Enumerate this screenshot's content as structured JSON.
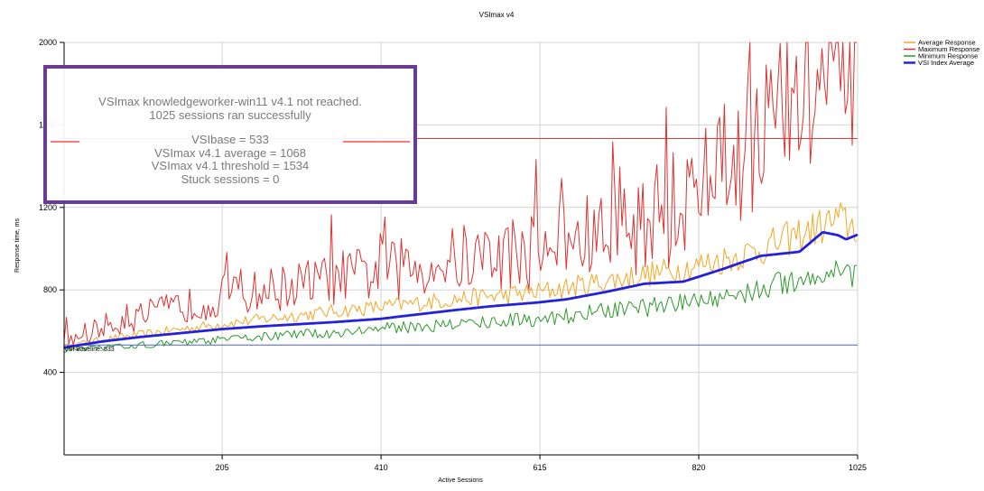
{
  "chart_data": {
    "type": "line",
    "title": "VSImax v4",
    "xlabel": "Active Sessions",
    "ylabel": "Response time, ms",
    "xlim": [
      1,
      1025
    ],
    "ylim": [
      0,
      2000
    ],
    "x_ticks": [
      205,
      410,
      615,
      820,
      1025
    ],
    "y_ticks": [
      400,
      800,
      1200,
      1600,
      2000
    ],
    "grid": true,
    "legend_position": "top-right",
    "baseline": {
      "label": "VSI Baseline: 533",
      "value": 533,
      "color": "#4a5fe0"
    },
    "threshold": {
      "value": 1534,
      "color": "#e03c3c"
    },
    "series": [
      {
        "name": "Average Response",
        "color": "#f5a623",
        "x": [
          1,
          50,
          100,
          150,
          205,
          250,
          300,
          350,
          410,
          450,
          500,
          550,
          615,
          650,
          700,
          750,
          800,
          850,
          900,
          950,
          1000,
          1025
        ],
        "values": [
          520,
          555,
          580,
          605,
          630,
          650,
          670,
          690,
          710,
          725,
          745,
          760,
          780,
          800,
          830,
          860,
          890,
          930,
          980,
          1050,
          1120,
          1080
        ]
      },
      {
        "name": "Maximum Response",
        "color": "#e03030",
        "x": [
          1,
          50,
          100,
          150,
          205,
          250,
          300,
          350,
          410,
          450,
          500,
          550,
          615,
          650,
          700,
          750,
          800,
          850,
          900,
          950,
          1000,
          1025
        ],
        "values": [
          540,
          610,
          660,
          700,
          740,
          770,
          800,
          830,
          860,
          880,
          910,
          930,
          960,
          990,
          1020,
          1080,
          1150,
          1300,
          1500,
          1650,
          1700,
          1550
        ]
      },
      {
        "name": "Minimum Response",
        "color": "#2a9a2a",
        "x": [
          1,
          50,
          100,
          150,
          205,
          250,
          300,
          350,
          410,
          450,
          500,
          550,
          615,
          650,
          700,
          750,
          800,
          850,
          900,
          950,
          1000,
          1025
        ],
        "values": [
          505,
          520,
          535,
          545,
          560,
          575,
          585,
          595,
          615,
          625,
          635,
          650,
          665,
          680,
          700,
          720,
          740,
          770,
          810,
          860,
          900,
          880
        ]
      },
      {
        "name": "VSI Index Average",
        "color": "#2222dd",
        "x": [
          1,
          50,
          100,
          150,
          205,
          250,
          300,
          350,
          410,
          450,
          500,
          550,
          615,
          650,
          700,
          750,
          800,
          850,
          900,
          950,
          980,
          1000,
          1010,
          1025
        ],
        "values": [
          520,
          550,
          572,
          590,
          610,
          622,
          633,
          644,
          660,
          678,
          700,
          720,
          740,
          755,
          790,
          830,
          840,
          900,
          965,
          985,
          1080,
          1065,
          1045,
          1068
        ]
      }
    ]
  },
  "summary_box": {
    "line1": "VSImax knowledgeworker-win11 v4.1 not reached.",
    "line2": "1025 sessions ran successfully",
    "line3": "VSIbase = 533",
    "line4": "VSImax v4.1 average = 1068",
    "line5": "VSImax v4.1 threshold = 1534",
    "line6": "Stuck sessions = 0"
  }
}
